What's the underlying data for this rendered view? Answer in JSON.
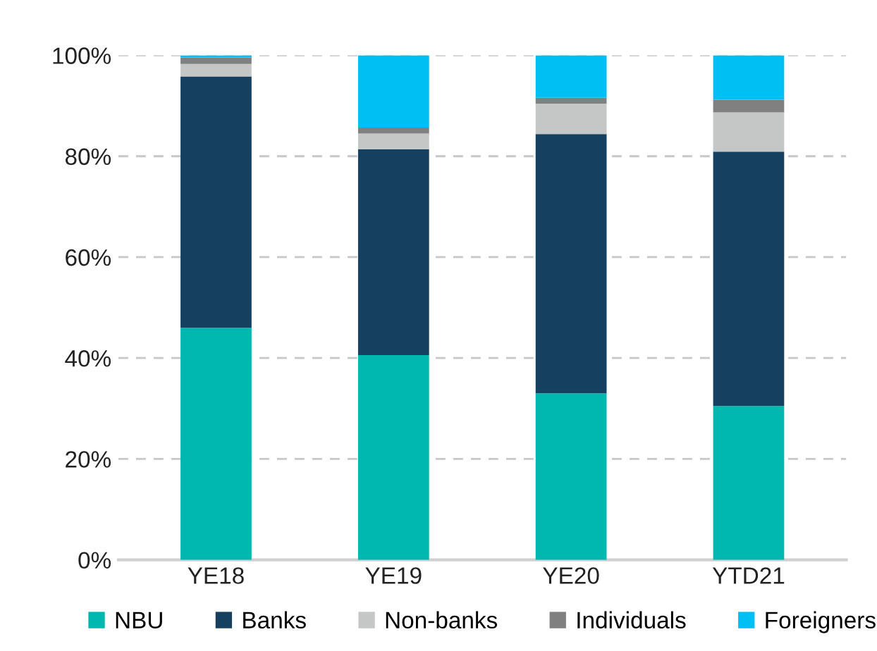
{
  "chart_data": {
    "type": "bar",
    "stacked": true,
    "categories": [
      "YE18",
      "YE19",
      "YE20",
      "YTD21"
    ],
    "series": [
      {
        "name": "NBU",
        "color": "#00b8b0",
        "values": [
          46.0,
          40.6,
          33.0,
          30.5
        ]
      },
      {
        "name": "Banks",
        "color": "#164060",
        "values": [
          49.8,
          40.8,
          51.4,
          50.4
        ]
      },
      {
        "name": "Non-banks",
        "color": "#c4c7c6",
        "values": [
          2.5,
          3.1,
          6.0,
          7.8
        ]
      },
      {
        "name": "Individuals",
        "color": "#808080",
        "values": [
          1.3,
          1.2,
          1.2,
          2.5
        ]
      },
      {
        "name": "Foreigners",
        "color": "#00bff3",
        "values": [
          0.4,
          14.3,
          8.4,
          8.8
        ]
      }
    ],
    "ylim": [
      0,
      100
    ],
    "yticks": [
      {
        "value": 0,
        "label": "0%"
      },
      {
        "value": 20,
        "label": "20%"
      },
      {
        "value": 40,
        "label": "40%"
      },
      {
        "value": 60,
        "label": "60%"
      },
      {
        "value": 80,
        "label": "80%"
      },
      {
        "value": 100,
        "label": "100%"
      }
    ],
    "grid": "y",
    "legend": "bottom"
  }
}
